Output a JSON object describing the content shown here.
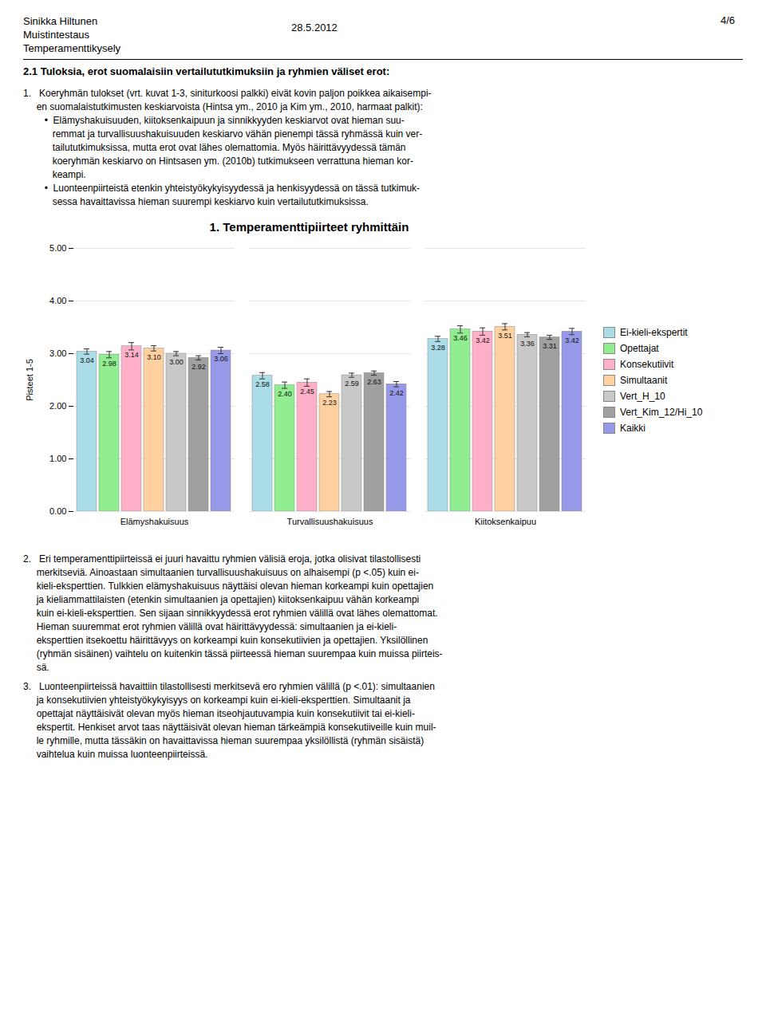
{
  "chart_data": {
    "type": "bar",
    "title": "1. Temperamenttipiirteet ryhmittäin",
    "ylabel": "Pisteet 1-5",
    "categories": [
      "Elämyshakuisuus",
      "Turvallisuushakuisuus",
      "Kiitoksenkaipuu"
    ],
    "series": [
      {
        "name": "Ei-kieli-ekspertit",
        "color": "#AADDE8",
        "values": [
          3.04,
          2.58,
          3.28
        ],
        "value_labels": [
          "3.04",
          "2.58",
          "3.28"
        ],
        "errors": [
          0.05,
          0.06,
          0.05
        ]
      },
      {
        "name": "Opettajat",
        "color": "#90EE90",
        "values": [
          2.98,
          2.4,
          3.46
        ],
        "value_labels": [
          "2.98",
          "2.40",
          "3.46"
        ],
        "errors": [
          0.06,
          0.06,
          0.07
        ]
      },
      {
        "name": "Konsekutiivit",
        "color": "#FFB0C8",
        "values": [
          3.14,
          2.45,
          3.42
        ],
        "value_labels": [
          "3.14",
          "2.45",
          "3.42"
        ],
        "errors": [
          0.07,
          0.07,
          0.07
        ]
      },
      {
        "name": "Simultaanit",
        "color": "#FFD0A0",
        "values": [
          3.1,
          2.23,
          3.51
        ],
        "value_labels": [
          "3.10",
          "2.23",
          "3.51"
        ],
        "errors": [
          0.05,
          0.05,
          0.06
        ]
      },
      {
        "name": "Vert_H_10",
        "color": "#C8C8C8",
        "values": [
          3.0,
          2.59,
          3.36
        ],
        "value_labels": [
          "3.00",
          "2.59",
          "3.36"
        ],
        "errors": [
          0.04,
          0.04,
          0.04
        ]
      },
      {
        "name": "Vert_Kim_12/Hi_10",
        "color": "#A0A0A0",
        "values": [
          2.92,
          2.63,
          3.31
        ],
        "value_labels": [
          "2.92",
          "2.63",
          "3.31"
        ],
        "errors": [
          0.04,
          0.04,
          0.04
        ]
      },
      {
        "name": "Kaikki",
        "color": "#9898E8",
        "values": [
          3.06,
          2.42,
          3.42
        ],
        "value_labels": [
          "3.06",
          "2.42",
          "3.42"
        ],
        "errors": [
          0.06,
          0.05,
          0.06
        ]
      }
    ],
    "ylim": [
      0,
      5
    ],
    "yticks": [
      {
        "value": 0,
        "label": "0.00"
      },
      {
        "value": 1,
        "label": "1.00"
      },
      {
        "value": 2,
        "label": "2.00"
      },
      {
        "value": 3,
        "label": "3.00"
      },
      {
        "value": 4,
        "label": "4.00"
      },
      {
        "value": 5,
        "label": "5.00"
      }
    ],
    "grid": true,
    "legend": "right",
    "data_labels": true,
    "annotations": [
      "Sinikka Hiltunen",
      "Muistintestaus",
      "Temperamenttikysely",
      "28.5.2012",
      "4/6",
      "2.1 Tuloksia, erot suomalaisiin vertailututkimuksiin ja ryhmien väliset erot:",
      "1.   Koeryhmän tulokset (vrt. kuvat 1-3, siniturkoosi palkki) eivät kovin paljon poikkea aikaisempi-",
      "     en suomalaistutkimusten keskiarvoista (Hintsa ym., 2010 ja Kim ym., 2010, harmaat palkit):",
      "        •  Elämyshakuisuuden, kiitoksenkaipuun ja sinnikkyyden keskiarvot ovat hieman suu-",
      "           remmat ja turvallisuushakuisuuden keskiarvo vähän pienempi tässä ryhmässä kuin ver-",
      "           tailututkimuksissa, mutta erot ovat lähes olemattomia. Myös häirittävyydessä tämän",
      "           koeryhmän keskiarvo on Hintsasen ym. (2010b) tutkimukseen verrattuna hieman kor-",
      "           keampi.",
      "        •  Luonteenpiirteistä etenkin yhteistyökykyisyydessä ja henkisyydessä on tässä tutkimuk-",
      "           sessa havaittavissa hieman suurempi keskiarvo kuin vertailututkimuksissa.",
      "2.   Eri temperamenttipiirteissä ei juuri havaittu ryhmien välisiä eroja, jotka olisivat tilastollisesti",
      "     merkitseviä. Ainoastaan simultaanien turvallisuushakuisuus on alhaisempi (p <.05) kuin ei-",
      "     kieli-eksperttien. Tulkkien elämyshakuisuus näyttäisi olevan hieman korkeampi kuin opettajien",
      "     ja kieliammattilaisten (etenkin simultaanien ja opettajien) kiitoksenkaipuu vähän korkeampi",
      "     kuin ei-kieli-eksperttien. Sen sijaan sinnikkyydessä erot ryhmien välillä ovat lähes olemattomat.",
      "     Hieman suuremmat erot ryhmien välillä ovat häirittävyydessä: simultaanien ja ei-kieli-",
      "     eksperttien itsekoettu häirittävyys on korkeampi kuin konsekutiivien ja opettajien. Yksilöllinen",
      "     (ryhmän sisäinen) vaihtelu on kuitenkin tässä piirteessä hieman suurempaa kuin muissa piirteis-",
      "     sä.",
      "3.   Luonteenpiirteissä havaittiin tilastollisesti merkitsevä ero ryhmien välillä (p <.01): simultaanien",
      "     ja konsekutiivien yhteistyökykyisyys on korkeampi kuin ei-kieli-eksperttien. Simultaanit ja",
      "     opettajat näyttäisivät olevan myös hieman itseohjautuvampia kuin konsekutiivit tai ei-kieli-",
      "     ekspertit. Henkiset arvot taas näyttäisivät olevan hieman tärkeämpiä konsekutiiveille kuin muil-",
      "     le ryhmille, mutta tässäkin on havaittavissa hieman suurempaa yksilöllistä (ryhmän sisäistä)",
      "     vaihtelua kuin muissa luonteenpiirteissä."
    ]
  }
}
